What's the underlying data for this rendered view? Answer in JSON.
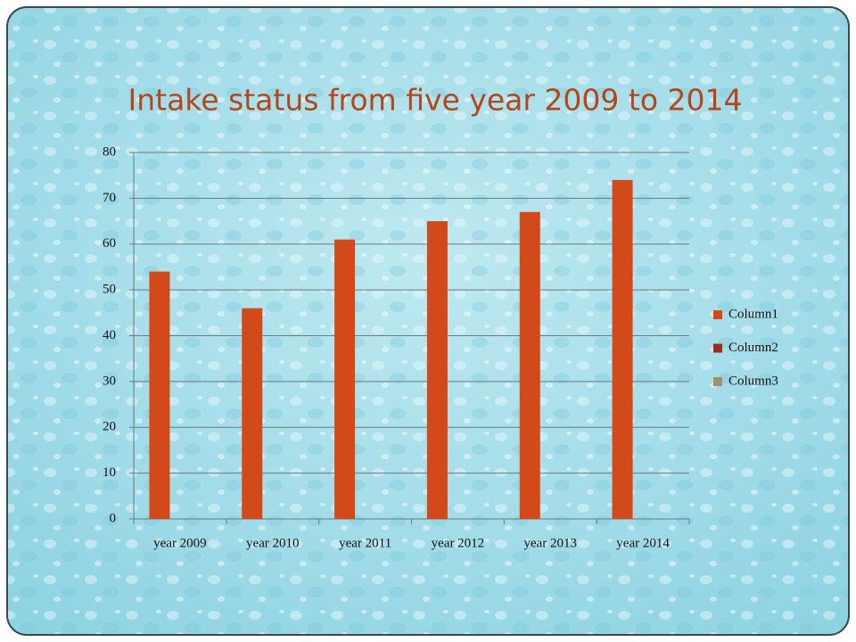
{
  "chart_data": {
    "type": "bar",
    "title": "Intake status from five year 2009 to 2014",
    "categories": [
      "year 2009",
      "year 2010",
      "year 2011",
      "year 2012",
      "year 2013",
      "year 2014"
    ],
    "series": [
      {
        "name": "Column1",
        "color": "#d24a19",
        "values": [
          54,
          46,
          61,
          65,
          67,
          74
        ]
      },
      {
        "name": "Column2",
        "color": "#9c2e1f",
        "values": [
          null,
          null,
          null,
          null,
          null,
          null
        ]
      },
      {
        "name": "Column3",
        "color": "#a09070",
        "values": [
          null,
          null,
          null,
          null,
          null,
          null
        ]
      }
    ],
    "ylim": [
      0,
      80
    ],
    "yticks": [
      0,
      10,
      20,
      30,
      40,
      50,
      60,
      70,
      80
    ],
    "grid": true,
    "legend": "right"
  }
}
